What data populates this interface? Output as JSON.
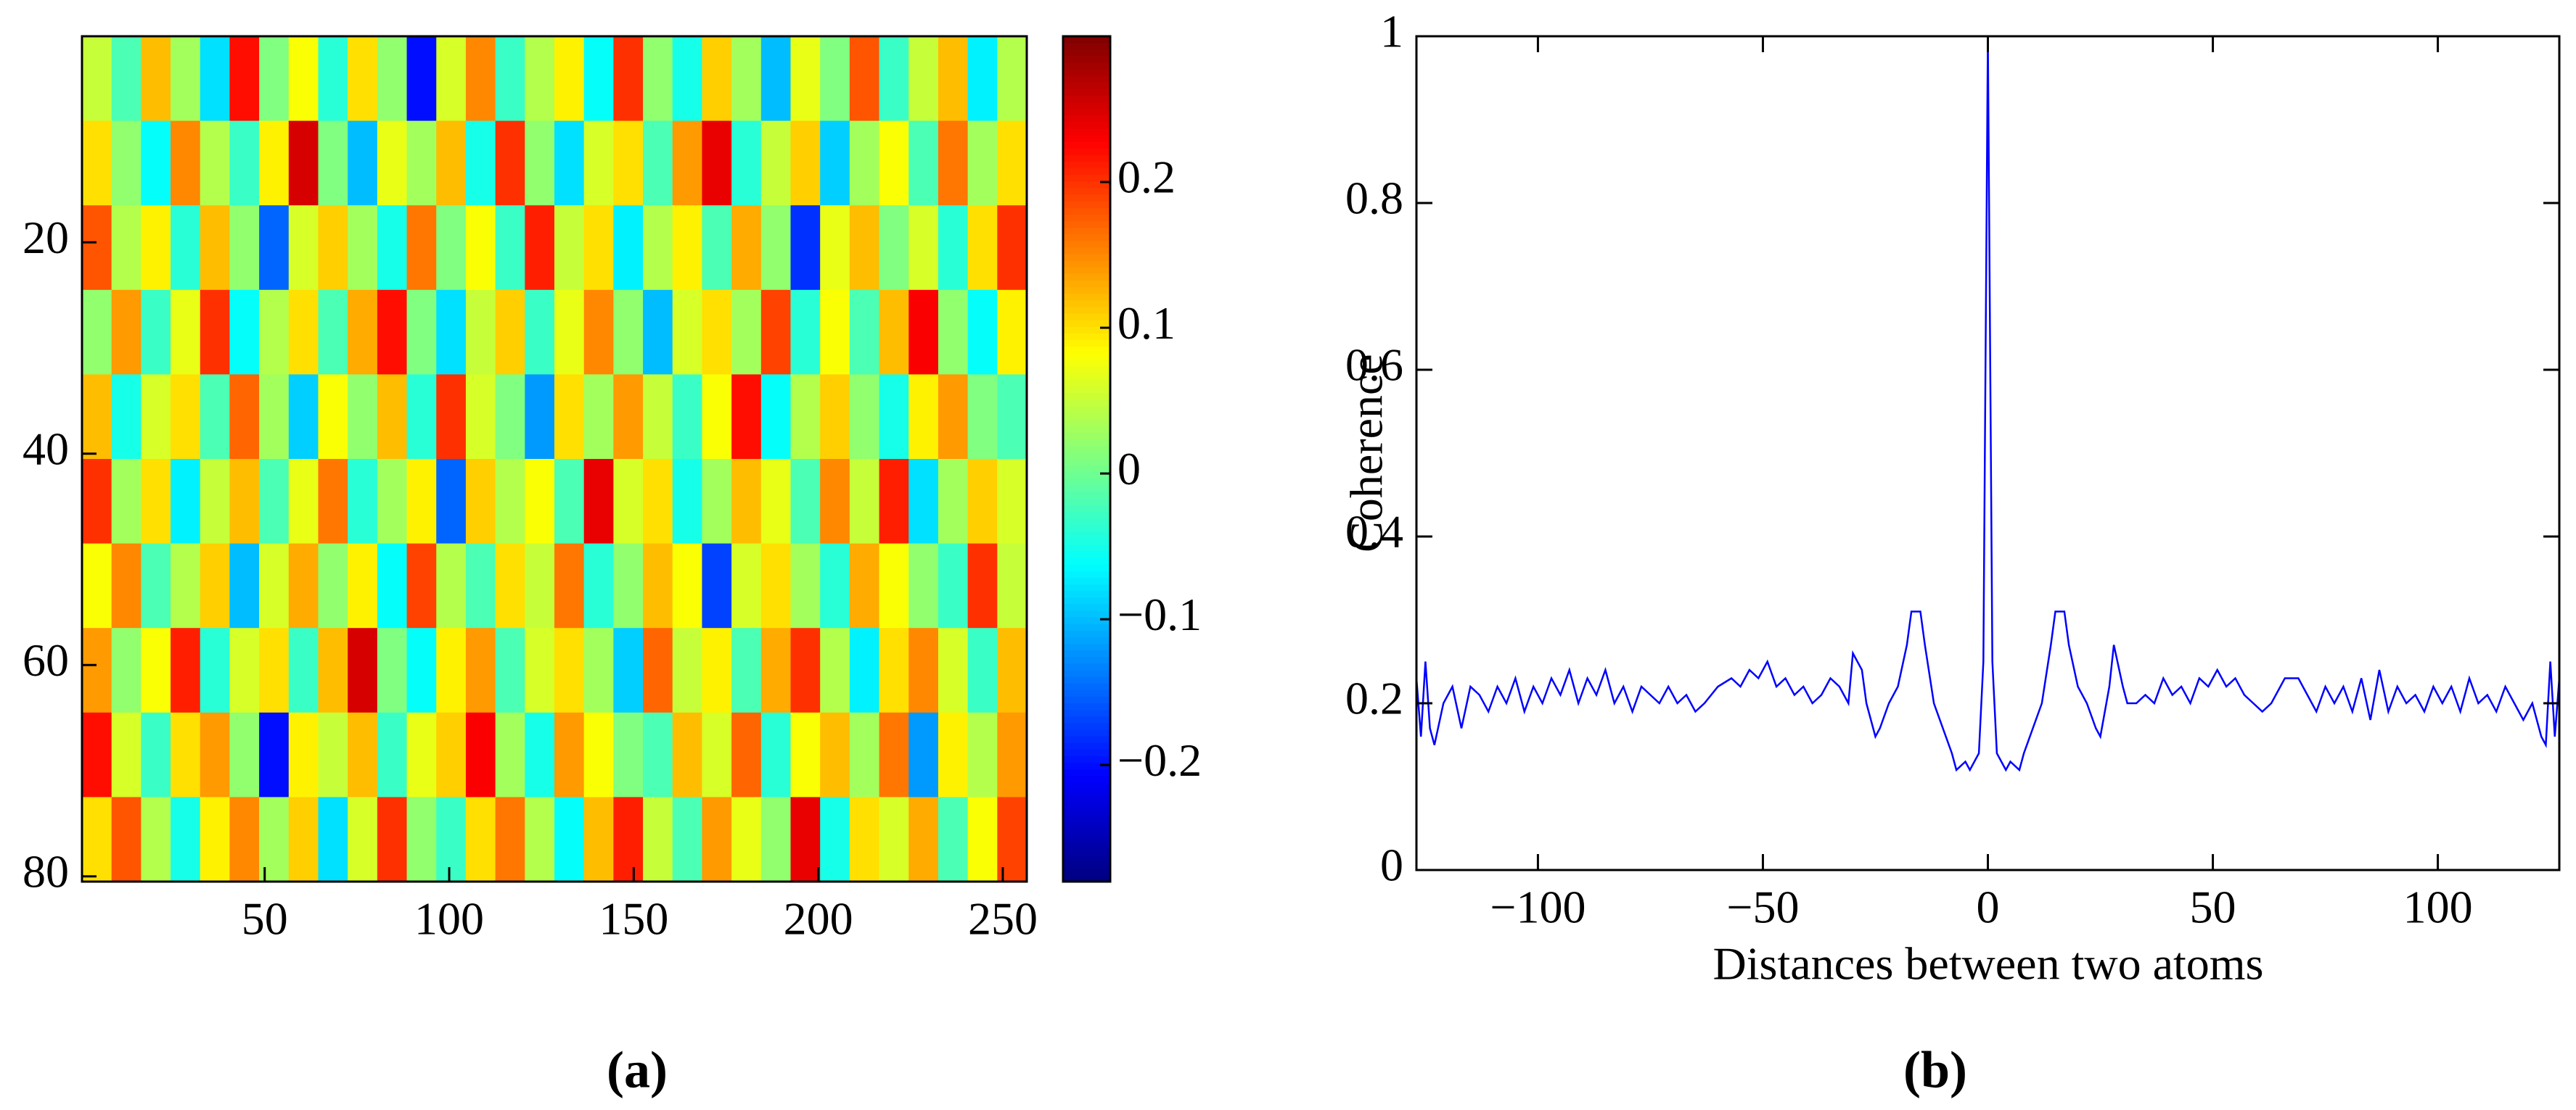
{
  "chart_data": [
    {
      "type": "heatmap",
      "colormap": "jet",
      "xlim": [
        0.5,
        256.5
      ],
      "ylim": [
        80.5,
        0.5
      ],
      "xticks": [
        50,
        100,
        150,
        200,
        250
      ],
      "yticks": [
        20,
        40,
        60,
        80
      ],
      "clim": [
        -0.28,
        0.3
      ],
      "cticks": [
        {
          "value": -0.2,
          "label": "−0.2"
        },
        {
          "value": -0.1,
          "label": "−0.1"
        },
        0,
        0.1,
        0.2
      ],
      "values": [
        [
          0.05,
          -0.02,
          0.12,
          0.03,
          -0.08,
          0.22,
          0.01,
          0.08,
          -0.04,
          0.1,
          0.02,
          -0.2,
          0.06,
          0.15,
          -0.03,
          0.04,
          0.09,
          -0.06,
          0.2,
          0.02,
          -0.05,
          0.11,
          0.03,
          -0.1,
          0.07,
          0.01,
          0.18,
          -0.03,
          0.05,
          0.12,
          -0.07,
          0.04
        ],
        [
          0.1,
          0.02,
          -0.06,
          0.15,
          0.04,
          -0.03,
          0.09,
          0.25,
          0.01,
          -0.1,
          0.07,
          0.03,
          0.12,
          -0.05,
          0.2,
          0.02,
          -0.08,
          0.06,
          0.1,
          -0.02,
          0.14,
          0.24,
          -0.04,
          0.05,
          0.11,
          -0.09,
          0.03,
          0.08,
          -0.02,
          0.16,
          0.03,
          0.1
        ],
        [
          0.18,
          0.04,
          0.09,
          -0.04,
          0.12,
          0.02,
          -0.15,
          0.06,
          0.11,
          0.03,
          -0.05,
          0.16,
          0.01,
          0.08,
          -0.03,
          0.21,
          0.05,
          0.1,
          -0.07,
          0.04,
          0.09,
          -0.02,
          0.13,
          0.02,
          -0.18,
          0.07,
          0.12,
          0.01,
          0.06,
          -0.04,
          0.1,
          0.2
        ],
        [
          0.02,
          0.14,
          -0.03,
          0.07,
          0.2,
          -0.06,
          0.04,
          0.1,
          -0.02,
          0.13,
          0.22,
          0.01,
          -0.08,
          0.05,
          0.11,
          -0.03,
          0.07,
          0.15,
          0.02,
          -0.1,
          0.06,
          0.1,
          0.03,
          0.19,
          -0.04,
          0.08,
          -0.02,
          0.12,
          0.23,
          0.02,
          -0.06,
          0.09
        ],
        [
          0.12,
          -0.05,
          0.06,
          0.1,
          -0.02,
          0.17,
          0.03,
          -0.09,
          0.08,
          0.02,
          0.12,
          -0.04,
          0.2,
          0.06,
          0.01,
          -0.12,
          0.1,
          0.03,
          0.14,
          0.05,
          -0.03,
          0.08,
          0.22,
          -0.06,
          0.04,
          0.11,
          0.02,
          -0.05,
          0.09,
          0.14,
          0.01,
          -0.02
        ],
        [
          0.2,
          0.03,
          0.1,
          -0.07,
          0.05,
          0.12,
          -0.02,
          0.07,
          0.16,
          -0.04,
          0.03,
          0.09,
          -0.15,
          0.11,
          0.04,
          0.08,
          -0.02,
          0.24,
          0.06,
          0.1,
          -0.05,
          0.03,
          0.12,
          0.07,
          -0.02,
          0.15,
          0.05,
          0.21,
          -0.08,
          0.03,
          0.11,
          0.06
        ],
        [
          0.08,
          0.15,
          -0.02,
          0.04,
          0.11,
          -0.1,
          0.06,
          0.13,
          0.02,
          0.09,
          -0.06,
          0.19,
          0.04,
          -0.02,
          0.1,
          0.05,
          0.16,
          -0.04,
          0.02,
          0.12,
          0.08,
          -0.17,
          0.06,
          0.1,
          0.03,
          -0.04,
          0.13,
          0.08,
          0.02,
          -0.03,
          0.2,
          0.05
        ],
        [
          0.14,
          0.02,
          0.08,
          0.21,
          -0.04,
          0.06,
          0.1,
          -0.03,
          0.12,
          0.25,
          0.01,
          -0.06,
          0.09,
          0.14,
          -0.02,
          0.06,
          0.1,
          0.03,
          -0.09,
          0.17,
          0.05,
          0.09,
          -0.02,
          0.13,
          0.2,
          0.04,
          -0.07,
          0.1,
          0.15,
          0.06,
          -0.03,
          0.12
        ],
        [
          0.22,
          0.06,
          -0.03,
          0.1,
          0.14,
          0.02,
          -0.2,
          0.09,
          0.05,
          0.12,
          -0.03,
          0.07,
          0.11,
          0.23,
          0.03,
          -0.05,
          0.14,
          0.08,
          0.01,
          -0.02,
          0.12,
          0.06,
          0.17,
          -0.04,
          0.08,
          0.12,
          0.03,
          0.16,
          -0.12,
          0.09,
          0.04,
          0.14
        ],
        [
          0.1,
          0.18,
          0.04,
          -0.05,
          0.09,
          0.15,
          0.03,
          0.11,
          -0.08,
          0.06,
          0.2,
          0.02,
          -0.03,
          0.1,
          0.16,
          0.04,
          -0.06,
          0.12,
          0.21,
          0.05,
          -0.02,
          0.14,
          0.07,
          0.02,
          0.24,
          -0.05,
          0.1,
          0.06,
          0.13,
          -0.02,
          0.08,
          0.19
        ]
      ],
      "panel_label": "(a)"
    },
    {
      "type": "line",
      "xlabel": "Distances between two atoms",
      "ylabel": "Coherence",
      "xlim": [
        -127,
        127
      ],
      "ylim": [
        0,
        1
      ],
      "xticks": [
        {
          "value": -100,
          "label": "−100"
        },
        {
          "value": -50,
          "label": "−50"
        },
        0,
        50,
        100
      ],
      "yticks": [
        0,
        0.2,
        0.4,
        0.6,
        0.8,
        1
      ],
      "series": [
        {
          "color": "#0000ff",
          "x": [
            -127,
            -126,
            -125,
            -124,
            -123,
            -121,
            -119,
            -117,
            -115,
            -113,
            -111,
            -109,
            -107,
            -105,
            -103,
            -101,
            -99,
            -97,
            -95,
            -93,
            -91,
            -89,
            -87,
            -85,
            -83,
            -81,
            -79,
            -77,
            -75,
            -73,
            -71,
            -69,
            -67,
            -65,
            -63,
            -60,
            -57,
            -55,
            -53,
            -51,
            -49,
            -47,
            -45,
            -43,
            -41,
            -39,
            -37,
            -35,
            -33,
            -31,
            -30,
            -28,
            -27,
            -25,
            -24,
            -22,
            -20,
            -18,
            -17,
            -15,
            -14,
            -12,
            -10,
            -8,
            -7,
            -5,
            -4,
            -2,
            -1,
            0,
            1,
            2,
            4,
            5,
            7,
            8,
            10,
            12,
            14,
            15,
            17,
            18,
            20,
            22,
            24,
            25,
            27,
            28,
            30,
            31,
            33,
            35,
            37,
            39,
            41,
            43,
            45,
            47,
            49,
            51,
            53,
            55,
            57,
            59,
            61,
            63,
            66,
            69,
            71,
            73,
            75,
            77,
            79,
            81,
            83,
            85,
            87,
            89,
            91,
            93,
            95,
            97,
            99,
            101,
            103,
            105,
            107,
            109,
            111,
            113,
            115,
            117,
            119,
            121,
            123,
            124,
            125,
            126,
            127
          ],
          "values": [
            0.23,
            0.16,
            0.25,
            0.17,
            0.15,
            0.2,
            0.22,
            0.17,
            0.22,
            0.21,
            0.19,
            0.22,
            0.2,
            0.23,
            0.19,
            0.22,
            0.2,
            0.23,
            0.21,
            0.24,
            0.2,
            0.23,
            0.21,
            0.24,
            0.2,
            0.22,
            0.19,
            0.22,
            0.21,
            0.2,
            0.22,
            0.2,
            0.21,
            0.19,
            0.2,
            0.22,
            0.23,
            0.22,
            0.24,
            0.23,
            0.25,
            0.22,
            0.23,
            0.21,
            0.22,
            0.2,
            0.21,
            0.23,
            0.22,
            0.2,
            0.26,
            0.24,
            0.2,
            0.16,
            0.17,
            0.2,
            0.22,
            0.27,
            0.31,
            0.31,
            0.27,
            0.2,
            0.17,
            0.14,
            0.12,
            0.13,
            0.12,
            0.14,
            0.25,
            1,
            0.25,
            0.14,
            0.12,
            0.13,
            0.12,
            0.14,
            0.17,
            0.2,
            0.27,
            0.31,
            0.31,
            0.27,
            0.22,
            0.2,
            0.17,
            0.16,
            0.22,
            0.27,
            0.22,
            0.2,
            0.2,
            0.21,
            0.2,
            0.23,
            0.21,
            0.22,
            0.2,
            0.23,
            0.22,
            0.24,
            0.22,
            0.23,
            0.21,
            0.2,
            0.19,
            0.2,
            0.23,
            0.23,
            0.21,
            0.19,
            0.22,
            0.2,
            0.22,
            0.19,
            0.23,
            0.18,
            0.24,
            0.19,
            0.22,
            0.2,
            0.21,
            0.19,
            0.22,
            0.2,
            0.22,
            0.19,
            0.23,
            0.2,
            0.21,
            0.19,
            0.22,
            0.2,
            0.18,
            0.2,
            0.16,
            0.15,
            0.25,
            0.16,
            0.23
          ]
        }
      ],
      "panel_label": "(b)"
    }
  ]
}
